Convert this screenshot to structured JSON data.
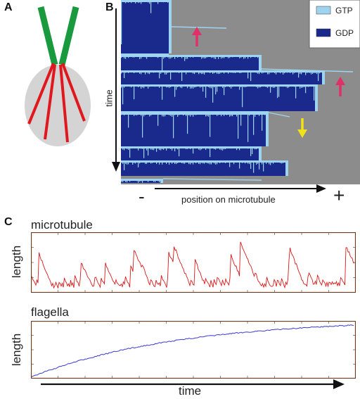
{
  "panels": {
    "a": {
      "letter": "A"
    },
    "b": {
      "letter": "B",
      "legend": [
        {
          "label": "GTP",
          "color": "#9fd4f0"
        },
        {
          "label": "GDP",
          "color": "#1a2a8c"
        }
      ],
      "background_color": "#8c8c8c",
      "y_axis_label": "time",
      "x_axis_label": "position on microtubule",
      "minus_end": "-",
      "plus_end": "+",
      "arrow_colors": {
        "pink": "#e0306a",
        "yellow": "#f2e21a"
      }
    },
    "c": {
      "letter": "C",
      "top": {
        "title": "microtubule",
        "y_label": "length",
        "line_color": "#d8191a"
      },
      "bottom": {
        "title": "flagella",
        "y_label": "length",
        "line_color": "#3b3bd0"
      },
      "x_label": "time"
    }
  },
  "colors": {
    "cell_body": "#d4d4d4",
    "flagella": "#1a9a3f",
    "microtubules": "#e0171d"
  }
}
